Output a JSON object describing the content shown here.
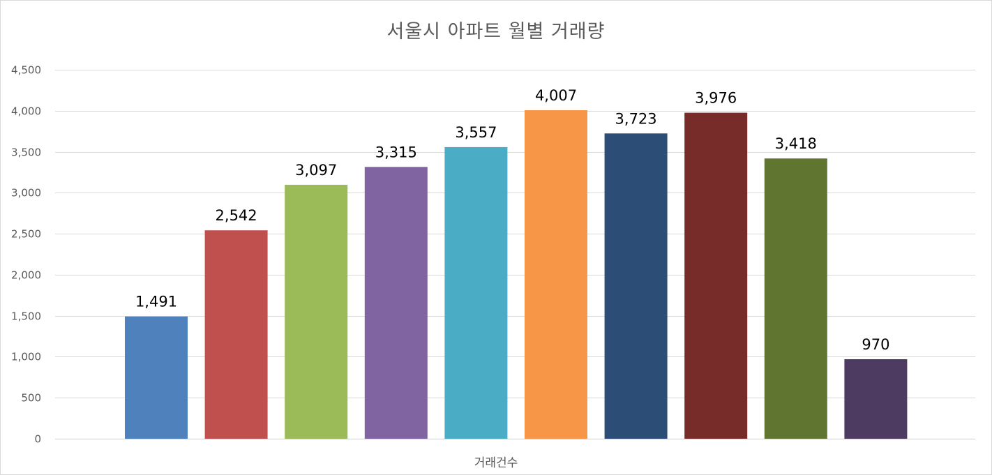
{
  "chart_data": {
    "type": "bar",
    "title": "서울시 아파트 월별 거래량",
    "xlabel": "거래건수",
    "ylabel": "",
    "ylim": [
      0,
      4500
    ],
    "y_ticks": [
      "0",
      "500",
      "1,000",
      "1,500",
      "2,000",
      "2,500",
      "3,000",
      "3,500",
      "4,000",
      "4,500"
    ],
    "y_tick_values": [
      0,
      500,
      1000,
      1500,
      2000,
      2500,
      3000,
      3500,
      4000,
      4500
    ],
    "grid": true,
    "legend": "none",
    "values": [
      1491,
      2542,
      3097,
      3315,
      3557,
      4007,
      3723,
      3976,
      3418,
      970
    ],
    "data_labels": [
      "1,491",
      "2,542",
      "3,097",
      "3,315",
      "3,557",
      "4,007",
      "3,723",
      "3,976",
      "3,418",
      "970"
    ],
    "colors": [
      "#4f81bd",
      "#c0504d",
      "#9bbb59",
      "#8064a2",
      "#4bacc6",
      "#f79646",
      "#2c4d75",
      "#772c2a",
      "#5f7530",
      "#4d3b62"
    ]
  }
}
